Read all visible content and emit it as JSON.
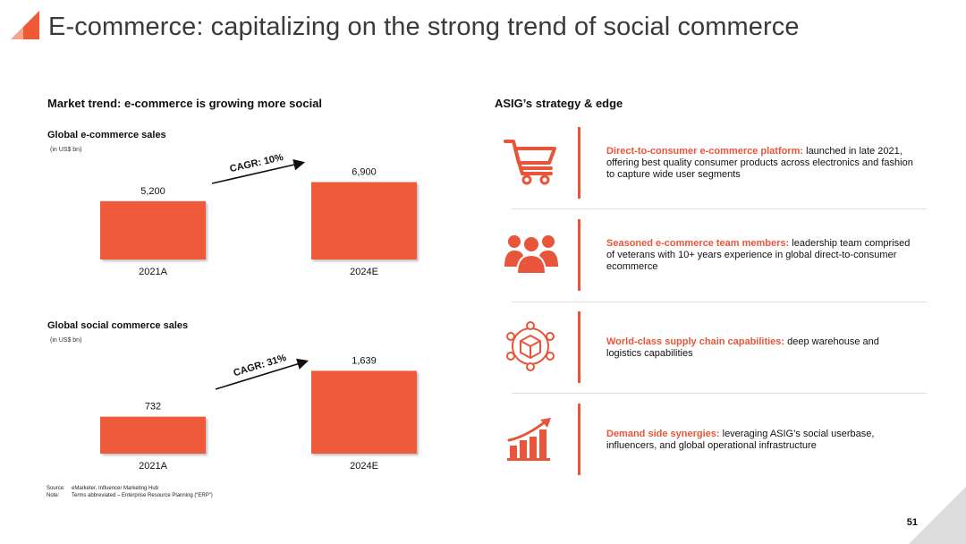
{
  "slide": {
    "title": "E-commerce: capitalizing on the strong trend of social commerce",
    "page_number": "51",
    "accent_color": "#e8553a"
  },
  "left": {
    "heading": "Market trend: e-commerce is growing more social"
  },
  "right": {
    "heading": "ASIG’s strategy & edge",
    "items": [
      {
        "icon": "shopping-cart-icon",
        "highlight": "Direct-to-consumer e-commerce platform:",
        "text": " launched in late 2021, offering best quality consumer products across electronics and fashion to capture wide user segments"
      },
      {
        "icon": "team-icon",
        "highlight": "Seasoned e-commerce team members:",
        "text": " leadership team comprised of veterans with 10+ years experience in global direct-to-consumer ecommerce"
      },
      {
        "icon": "supply-network-icon",
        "highlight": "World-class supply chain capabilities:",
        "text": " deep warehouse and logistics capabilities"
      },
      {
        "icon": "growth-chart-icon",
        "highlight": "Demand side synergies:",
        "text": " leveraging ASIG’s social userbase, influencers, and global operational infrastructure"
      }
    ]
  },
  "footnotes": {
    "source_label": "Source:",
    "source_text": "eMarketer, Influencer Marketing Hub",
    "note_label": "Note:",
    "note_text": "Terms abbreviated – Enterprise Resource Planning (“ERP”)"
  },
  "chart_data": [
    {
      "type": "bar",
      "title": "Global e-commerce sales",
      "unit": "(in US$ bn)",
      "categories": [
        "2021A",
        "2024E"
      ],
      "values": [
        5200,
        6900
      ],
      "value_labels": [
        "5,200",
        "6,900"
      ],
      "annotation": "CAGR: 10%",
      "ylim": [
        0,
        7500
      ],
      "color": "#ef5a3a"
    },
    {
      "type": "bar",
      "title": "Global social commerce sales",
      "unit": "(in US$ bn)",
      "categories": [
        "2021A",
        "2024E"
      ],
      "values": [
        732,
        1639
      ],
      "value_labels": [
        "732",
        "1,639"
      ],
      "annotation": "CAGR: 31%",
      "ylim": [
        0,
        1700
      ],
      "color": "#ef5a3a"
    }
  ]
}
